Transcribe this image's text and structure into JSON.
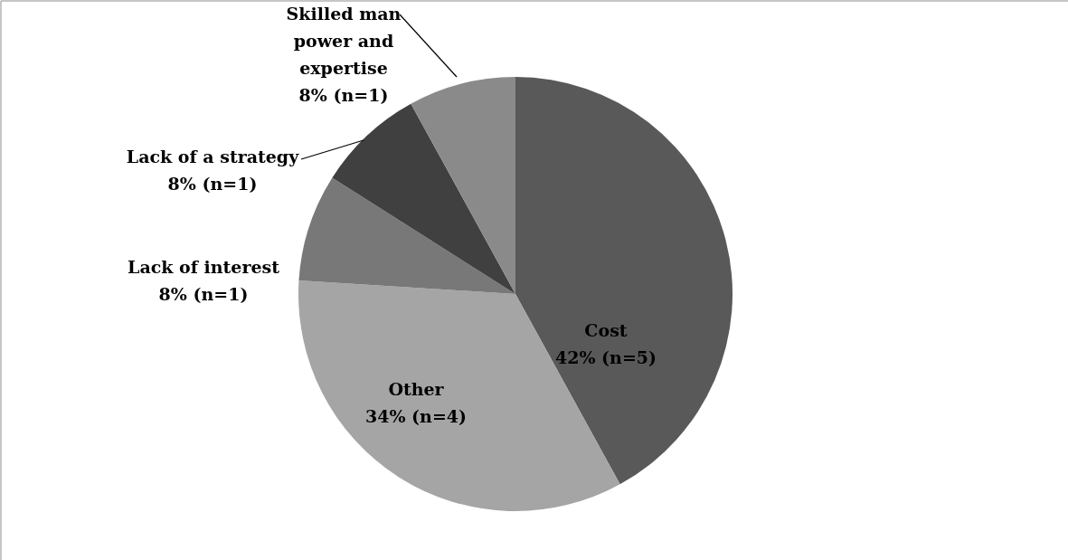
{
  "chart_data": {
    "type": "pie",
    "categories": [
      "Cost",
      "Other",
      "Lack of interest",
      "Lack of a strategy",
      "Skilled man power and expertise"
    ],
    "values": [
      42,
      34,
      8,
      8,
      8
    ],
    "colors": [
      "#595959",
      "#a5a5a5",
      "#787878",
      "#404040",
      "#8a8a8a"
    ],
    "value_labels": [
      "42% (n=5)",
      "34% (n=4)",
      "8% (n=1)",
      "8% (n=1)",
      "8% (n=1)"
    ]
  }
}
